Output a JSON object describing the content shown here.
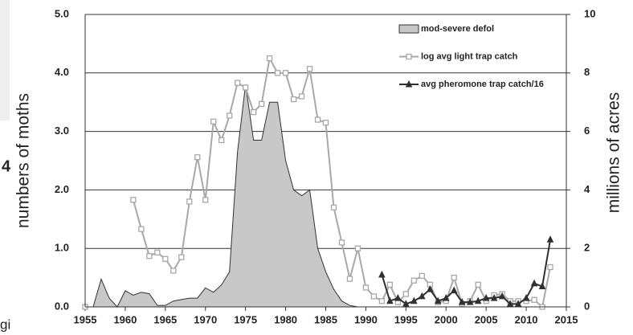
{
  "chart_data": {
    "type": "area-line",
    "side_texts": [
      "4",
      "gi"
    ],
    "ylabel": "numbers of moths",
    "y2label": "millions of acres",
    "xlim": [
      1955,
      2015
    ],
    "xticks": [
      1955,
      1960,
      1965,
      1970,
      1975,
      1980,
      1985,
      1990,
      1995,
      2000,
      2005,
      2010,
      2015
    ],
    "ylim": [
      0,
      5
    ],
    "yticks": [
      {
        "value": 0,
        "label": "0.0"
      },
      {
        "value": 1,
        "label": "1.0"
      },
      {
        "value": 2,
        "label": "2.0"
      },
      {
        "value": 3,
        "label": "3.0"
      },
      {
        "value": 4,
        "label": "4.0"
      },
      {
        "value": 5,
        "label": "5.0"
      }
    ],
    "y2lim": [
      0,
      10
    ],
    "y2ticks": [
      0,
      2,
      4,
      6,
      8,
      10
    ],
    "grid": true,
    "legend": "top-right",
    "series": [
      {
        "name": "mod-severe defol",
        "kind": "area",
        "axis": "y2",
        "color": "#c8c8c8",
        "x": [
          1955,
          1956,
          1957,
          1958,
          1959,
          1960,
          1961,
          1962,
          1963,
          1964,
          1965,
          1966,
          1967,
          1968,
          1969,
          1970,
          1971,
          1972,
          1973,
          1974,
          1975,
          1976,
          1977,
          1978,
          1979,
          1980,
          1981,
          1982,
          1983,
          1984,
          1985,
          1986,
          1987,
          1988,
          1989
        ],
        "values": [
          0,
          0,
          0.95,
          0.3,
          0,
          0.55,
          0.4,
          0.5,
          0.45,
          0.05,
          0.05,
          0.2,
          0.25,
          0.3,
          0.3,
          0.65,
          0.5,
          0.75,
          1.2,
          5.3,
          7.6,
          5.7,
          5.7,
          7.0,
          7.0,
          5.0,
          4.0,
          3.8,
          4.0,
          2.0,
          1.2,
          0.6,
          0.2,
          0.05,
          0
        ]
      },
      {
        "name": "log avg light trap catch",
        "kind": "line",
        "marker": "square",
        "color": "#a8a8a8",
        "x": [
          1955,
          1956,
          1957,
          1958,
          1959,
          1960,
          1961,
          1962,
          1963,
          1964,
          1965,
          1966,
          1967,
          1968,
          1969,
          1970,
          1971,
          1972,
          1973,
          1974,
          1975,
          1976,
          1977,
          1978,
          1979,
          1980,
          1981,
          1982,
          1983,
          1984,
          1985,
          1986,
          1987,
          1988,
          1989,
          1990,
          1991,
          1992,
          1993,
          1994,
          1995,
          1996,
          1997,
          1998,
          1999,
          2000,
          2001,
          2002,
          2003,
          2004,
          2005,
          2006,
          2007,
          2008,
          2009,
          2010,
          2011,
          2012,
          2013
        ],
        "values": [
          0,
          null,
          null,
          null,
          null,
          null,
          1.83,
          1.33,
          0.87,
          0.93,
          0.82,
          0.62,
          0.85,
          1.8,
          2.56,
          1.83,
          3.17,
          2.85,
          3.27,
          3.83,
          3.75,
          3.33,
          3.47,
          4.25,
          4.0,
          4.0,
          3.55,
          3.6,
          4.07,
          3.2,
          3.15,
          1.7,
          1.1,
          0.48,
          1.0,
          0.33,
          0.18,
          0.1,
          0.38,
          0.08,
          0.22,
          0.45,
          0.53,
          0.38,
          0.08,
          0.1,
          0.5,
          0.05,
          0.1,
          0.38,
          0.1,
          0.2,
          0.22,
          0.1,
          0.1,
          0.1,
          0.12,
          0,
          0.68
        ]
      },
      {
        "name": "avg pheromone trap catch/16",
        "kind": "line",
        "marker": "triangle",
        "color": "#303030",
        "x": [
          1992,
          1993,
          1994,
          1995,
          1996,
          1997,
          1998,
          1999,
          2000,
          2001,
          2002,
          2003,
          2004,
          2005,
          2006,
          2007,
          2008,
          2009,
          2010,
          2011,
          2012,
          2013
        ],
        "values": [
          0.55,
          0.1,
          0.15,
          0.05,
          0.1,
          0.18,
          0.3,
          0.1,
          0.15,
          0.28,
          0.08,
          0.08,
          0.1,
          0.15,
          0.15,
          0.18,
          0.05,
          0.05,
          0.15,
          0.4,
          0.35,
          1.15
        ]
      }
    ]
  }
}
